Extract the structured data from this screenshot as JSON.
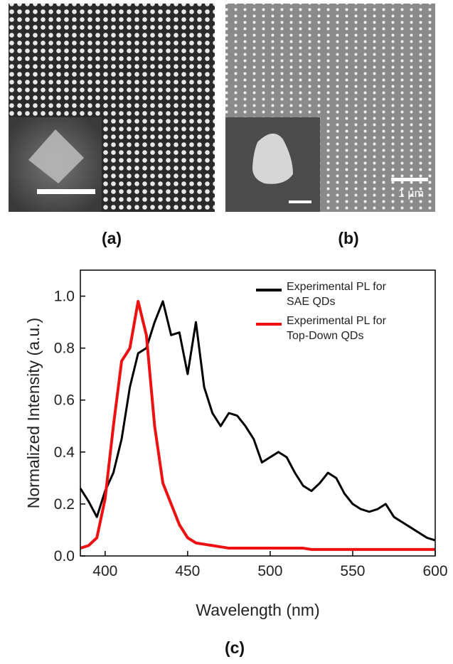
{
  "panels": {
    "a": "(a)",
    "b": "(b)",
    "c": "(c)"
  },
  "scale_bar_label": "1 µm",
  "chart_data": {
    "type": "line",
    "x_label": "Wavelength (nm)",
    "y_label": "Normalized Intensity (a.u.)",
    "x": [
      385,
      390,
      395,
      400,
      405,
      410,
      415,
      420,
      425,
      430,
      435,
      440,
      445,
      450,
      455,
      460,
      465,
      470,
      475,
      480,
      485,
      490,
      495,
      500,
      505,
      510,
      515,
      520,
      525,
      530,
      535,
      540,
      545,
      550,
      555,
      560,
      565,
      570,
      575,
      580,
      585,
      590,
      595,
      600
    ],
    "series": [
      {
        "name": "Experimental PL for SAE QDs",
        "color": "#000000",
        "values": [
          0.26,
          0.21,
          0.15,
          0.25,
          0.32,
          0.45,
          0.65,
          0.78,
          0.8,
          0.9,
          0.98,
          0.85,
          0.86,
          0.7,
          0.9,
          0.65,
          0.55,
          0.5,
          0.55,
          0.54,
          0.5,
          0.45,
          0.36,
          0.38,
          0.4,
          0.38,
          0.32,
          0.27,
          0.25,
          0.28,
          0.32,
          0.3,
          0.24,
          0.2,
          0.18,
          0.17,
          0.18,
          0.2,
          0.15,
          0.13,
          0.11,
          0.09,
          0.07,
          0.06
        ]
      },
      {
        "name": "Experimental PL for Top-Down QDs",
        "color": "#ee1111",
        "values": [
          0.03,
          0.04,
          0.07,
          0.22,
          0.5,
          0.75,
          0.8,
          0.98,
          0.85,
          0.5,
          0.28,
          0.2,
          0.12,
          0.07,
          0.05,
          0.045,
          0.04,
          0.035,
          0.03,
          0.03,
          0.03,
          0.03,
          0.03,
          0.03,
          0.03,
          0.03,
          0.03,
          0.03,
          0.025,
          0.025,
          0.025,
          0.025,
          0.025,
          0.025,
          0.025,
          0.025,
          0.025,
          0.025,
          0.025,
          0.025,
          0.025,
          0.025,
          0.025,
          0.025
        ]
      }
    ],
    "xlim": [
      385,
      600
    ],
    "xticks": [
      400,
      450,
      500,
      550,
      600
    ],
    "ylim": [
      0,
      1.1
    ],
    "yticks": [
      {
        "value": 0,
        "label": "0.0"
      },
      0.2,
      0.4,
      0.6,
      0.8,
      {
        "value": 1,
        "label": "1.0"
      }
    ],
    "legend": "upper-right"
  }
}
